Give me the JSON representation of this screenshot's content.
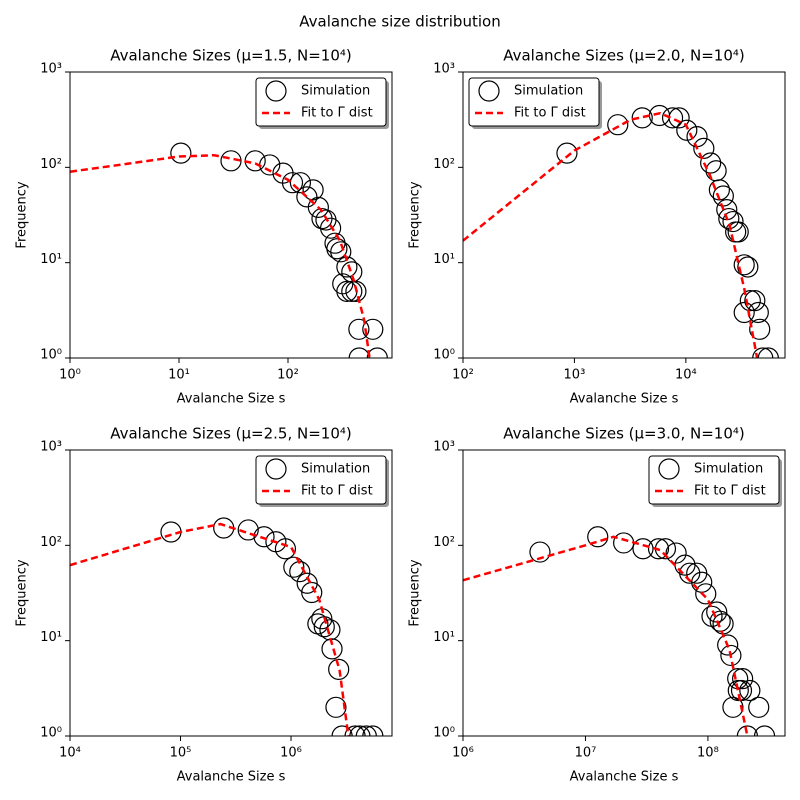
{
  "title": "Avalanche size distribution",
  "chart_data": [
    {
      "type": "scatter",
      "title": "Avalanche Sizes (μ=1.5, N=10⁴)",
      "x_label": "Avalanche Size s",
      "y_label": "Frequency",
      "xscale": "log",
      "yscale": "log",
      "legend": "upper right",
      "xlim": [
        1,
        900
      ],
      "ylim": [
        1,
        1000
      ],
      "xticks": [
        {
          "value": 1,
          "label": "10⁰"
        },
        {
          "value": 10,
          "label": "10¹"
        },
        {
          "value": 100,
          "label": "10²"
        }
      ],
      "yticks": [
        {
          "value": 1,
          "label": "10⁰"
        },
        {
          "value": 10,
          "label": "10¹"
        },
        {
          "value": 100,
          "label": "10²"
        },
        {
          "value": 1000,
          "label": "10³"
        }
      ],
      "series": [
        {
          "name": "Simulation",
          "color": "#000000",
          "marker": "open-circle",
          "x": [
            10.4,
            30,
            50,
            68,
            90,
            110,
            130,
            149,
            170,
            190,
            205,
            223,
            246,
            270,
            281,
            305,
            347,
            385,
            318,
            347,
            385,
            420,
            447,
            600,
            450,
            660
          ],
          "values": [
            141,
            117,
            117,
            106,
            87,
            69,
            69,
            49,
            58,
            38,
            29,
            28,
            23,
            16,
            14,
            13,
            9,
            8,
            6,
            5,
            5,
            5,
            2,
            2,
            1,
            1
          ]
        },
        {
          "name": "Fit to Γ dist",
          "color": "#ff0000",
          "linestyle": "dashed",
          "x": [
            1,
            3,
            10,
            21,
            50,
            100,
            200,
            300,
            400,
            500,
            560
          ],
          "values": [
            90,
            107,
            130,
            134,
            110,
            74,
            36,
            17,
            6.6,
            2.5,
            1
          ]
        }
      ]
    },
    {
      "type": "scatter",
      "title": "Avalanche Sizes (μ=2.0, N=10⁴)",
      "x_label": "Avalanche Size s",
      "y_label": "Frequency",
      "xscale": "log",
      "yscale": "log",
      "legend": "upper left",
      "xlim": [
        100,
        77600
      ],
      "ylim": [
        1,
        1000
      ],
      "xticks": [
        {
          "value": 100,
          "label": "10²"
        },
        {
          "value": 1000,
          "label": "10³"
        },
        {
          "value": 10000,
          "label": "10⁴"
        }
      ],
      "yticks": [
        {
          "value": 1,
          "label": "10⁰"
        },
        {
          "value": 10,
          "label": "10¹"
        },
        {
          "value": 100,
          "label": "10²"
        },
        {
          "value": 1000,
          "label": "10³"
        }
      ],
      "series": [
        {
          "name": "Simulation",
          "color": "#000000",
          "marker": "open-circle",
          "x": [
            857,
            2450,
            4060,
            5800,
            7600,
            8700,
            10200,
            12600,
            14500,
            16700,
            18700,
            20000,
            21700,
            23300,
            24300,
            26500,
            28000,
            29500,
            33400,
            36000,
            33400,
            37900,
            41600,
            44700,
            46000,
            49000,
            55000
          ],
          "values": [
            141,
            280,
            330,
            350,
            330,
            330,
            245,
            210,
            158,
            111,
            92,
            58,
            50,
            36,
            29,
            27,
            21,
            21,
            9.5,
            9,
            3,
            4,
            4,
            3,
            2,
            1,
            1
          ]
        },
        {
          "name": "Fit to Γ dist",
          "color": "#ff0000",
          "linestyle": "dashed",
          "x": [
            100,
            1000,
            3200,
            5900,
            10000,
            16400,
            24600,
            33600,
            43600
          ],
          "values": [
            17,
            150,
            316,
            370,
            280,
            83,
            25,
            5.2,
            1
          ]
        }
      ]
    },
    {
      "type": "scatter",
      "title": "Avalanche Sizes (μ=2.5, N=10⁴)",
      "x_label": "Avalanche Size s",
      "y_label": "Frequency",
      "xscale": "log",
      "yscale": "log",
      "legend": "upper right",
      "xlim": [
        10000,
        8200000
      ],
      "ylim": [
        1,
        1000
      ],
      "xticks": [
        {
          "value": 10000,
          "label": "10⁴"
        },
        {
          "value": 100000,
          "label": "10⁵"
        },
        {
          "value": 1000000,
          "label": "10⁶"
        }
      ],
      "yticks": [
        {
          "value": 1,
          "label": "10⁰"
        },
        {
          "value": 10,
          "label": "10¹"
        },
        {
          "value": 100,
          "label": "10²"
        },
        {
          "value": 1000,
          "label": "10³"
        }
      ],
      "series": [
        {
          "name": "Simulation",
          "color": "#000000",
          "marker": "open-circle",
          "x": [
            82000,
            246000,
            410000,
            570000,
            730000,
            890000,
            1060000,
            1200000,
            1400000,
            1540000,
            1750000,
            1900000,
            2000000,
            2250000,
            2350000,
            2700000,
            2550000,
            2900000,
            3800000,
            4200000,
            4800000,
            5500000
          ],
          "values": [
            138,
            152,
            145,
            123,
            109,
            92,
            59,
            53,
            40,
            32,
            15,
            17,
            14,
            13,
            8.2,
            5,
            2,
            1,
            1,
            1,
            1,
            1
          ]
        },
        {
          "name": "Fit to Γ dist",
          "color": "#ff0000",
          "linestyle": "dashed",
          "x": [
            10000,
            100000,
            230000,
            1000000,
            1800000,
            2750000,
            3300000
          ],
          "values": [
            62,
            138,
            167,
            96,
            27,
            4.9,
            1
          ]
        }
      ]
    },
    {
      "type": "scatter",
      "title": "Avalanche Sizes (μ=3.0, N=10⁴)",
      "x_label": "Avalanche Size s",
      "y_label": "Frequency",
      "xscale": "log",
      "yscale": "log",
      "legend": "upper right",
      "xlim": [
        1000000,
        426000000
      ],
      "ylim": [
        1,
        1000
      ],
      "xticks": [
        {
          "value": 1000000,
          "label": "10⁶"
        },
        {
          "value": 10000000,
          "label": "10⁷"
        },
        {
          "value": 100000000,
          "label": "10⁸"
        }
      ],
      "yticks": [
        {
          "value": 1,
          "label": "10⁰"
        },
        {
          "value": 10,
          "label": "10¹"
        },
        {
          "value": 100,
          "label": "10²"
        },
        {
          "value": 1000,
          "label": "10³"
        }
      ],
      "series": [
        {
          "name": "Simulation",
          "color": "#000000",
          "marker": "open-circle",
          "x": [
            4250000,
            12600000,
            20500000,
            29500000,
            39500000,
            45000000,
            55000000,
            65000000,
            71000000,
            81000000,
            89000000,
            96000000,
            108000000,
            118000000,
            126000000,
            133000000,
            145000000,
            154000000,
            175000000,
            192000000,
            177000000,
            188000000,
            220000000,
            160000000,
            260000000,
            210000000,
            290000000
          ],
          "values": [
            85,
            123,
            106,
            92,
            92,
            92,
            83,
            62,
            51,
            51,
            41,
            31,
            18,
            20,
            16,
            15,
            9,
            7,
            4,
            4,
            3,
            3,
            3,
            2,
            2,
            1,
            1
          ]
        },
        {
          "name": "Fit to Γ dist",
          "color": "#ff0000",
          "linestyle": "dashed",
          "x": [
            1000000,
            10000000,
            17000000,
            41000000,
            100000000,
            150000000,
            210000000
          ],
          "values": [
            43,
            100,
            123,
            89,
            27,
            8,
            1
          ]
        }
      ]
    }
  ]
}
